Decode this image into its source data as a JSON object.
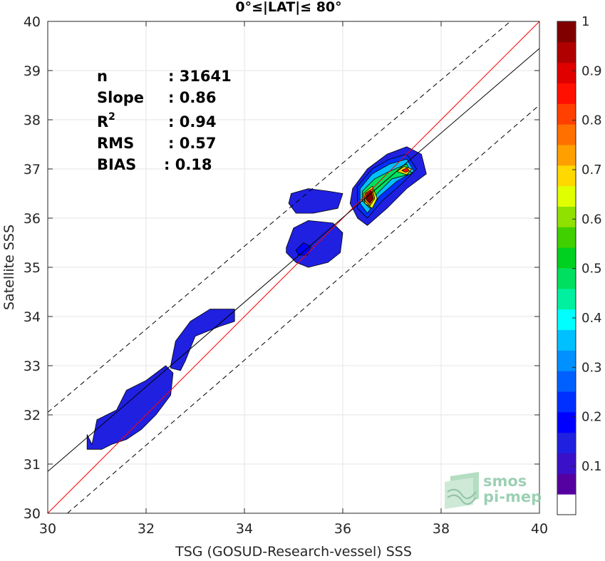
{
  "chart_data": {
    "type": "heatmap",
    "title": "0°≤|LAT|≤ 80°",
    "xlabel": "TSG (GOSUD-Research-vessel) SSS",
    "ylabel": "Satellite SSS",
    "xlim": [
      30,
      40
    ],
    "ylim": [
      30,
      40
    ],
    "xticks": [
      30,
      32,
      34,
      36,
      38,
      40
    ],
    "yticks": [
      30,
      31,
      32,
      33,
      34,
      35,
      36,
      37,
      38,
      39,
      40
    ],
    "grid": true,
    "stats": [
      {
        "label": "n",
        "value": ": 31641"
      },
      {
        "label": "Slope",
        "value": ": 0.86"
      },
      {
        "label": "R",
        "sup": "2",
        "value": ": 0.94"
      },
      {
        "label": "RMS",
        "value": ": 0.57"
      },
      {
        "label": "BIAS",
        "value": ": 0.18"
      }
    ],
    "lines": [
      {
        "name": "1:1 line",
        "color": "#ff0000",
        "style": "solid",
        "points": [
          [
            30,
            30
          ],
          [
            40,
            40
          ]
        ]
      },
      {
        "name": "regression",
        "color": "#000000",
        "style": "solid",
        "points": [
          [
            30,
            30.85
          ],
          [
            40,
            39.45
          ]
        ]
      },
      {
        "name": "upper bound",
        "color": "#000000",
        "style": "dashed",
        "points": [
          [
            30,
            32.05
          ],
          [
            40,
            40.5
          ]
        ]
      },
      {
        "name": "lower bound",
        "color": "#000000",
        "style": "dashed",
        "points": [
          [
            30.4,
            30
          ],
          [
            40,
            38.3
          ]
        ]
      }
    ],
    "density_regions": [
      {
        "name": "cluster-31",
        "level": 0.1,
        "outline": [
          [
            30.9,
            31.4
          ],
          [
            31.0,
            31.9
          ],
          [
            31.4,
            32.1
          ],
          [
            31.6,
            32.5
          ],
          [
            32.0,
            32.7
          ],
          [
            32.4,
            33.0
          ],
          [
            32.55,
            32.85
          ],
          [
            32.5,
            32.4
          ],
          [
            32.2,
            32.0
          ],
          [
            31.9,
            31.7
          ],
          [
            31.6,
            31.5
          ],
          [
            31.3,
            31.4
          ],
          [
            31.1,
            31.3
          ],
          [
            30.8,
            31.3
          ],
          [
            30.8,
            31.6
          ]
        ]
      },
      {
        "name": "cluster-33",
        "level": 0.1,
        "outline": [
          [
            32.5,
            33.0
          ],
          [
            32.6,
            33.5
          ],
          [
            32.9,
            33.9
          ],
          [
            33.3,
            34.15
          ],
          [
            33.8,
            34.15
          ],
          [
            33.8,
            33.9
          ],
          [
            33.5,
            33.8
          ],
          [
            33.0,
            33.6
          ],
          [
            32.8,
            33.1
          ],
          [
            32.7,
            32.9
          ],
          [
            32.5,
            32.95
          ]
        ]
      },
      {
        "name": "cluster-35",
        "level": 0.1,
        "outline": [
          [
            34.85,
            35.4
          ],
          [
            35.0,
            35.8
          ],
          [
            35.3,
            35.95
          ],
          [
            35.8,
            35.9
          ],
          [
            36.0,
            35.7
          ],
          [
            35.95,
            35.3
          ],
          [
            35.7,
            35.1
          ],
          [
            35.3,
            35.0
          ],
          [
            35.05,
            35.1
          ],
          [
            34.85,
            35.3
          ]
        ]
      },
      {
        "name": "cluster-35-core",
        "level": 0.15,
        "outline": [
          [
            35.05,
            35.35
          ],
          [
            35.2,
            35.5
          ],
          [
            35.35,
            35.42
          ],
          [
            35.28,
            35.25
          ],
          [
            35.1,
            35.25
          ]
        ]
      },
      {
        "name": "cluster-36-bridge",
        "level": 0.1,
        "outline": [
          [
            34.95,
            36.5
          ],
          [
            35.3,
            36.6
          ],
          [
            35.7,
            36.55
          ],
          [
            36.0,
            36.5
          ],
          [
            35.9,
            36.2
          ],
          [
            35.4,
            36.1
          ],
          [
            35.05,
            36.1
          ],
          [
            34.9,
            36.3
          ]
        ]
      },
      {
        "name": "cluster-37",
        "level": 0.1,
        "outline": [
          [
            36.2,
            36.6
          ],
          [
            36.5,
            37.0
          ],
          [
            36.9,
            37.3
          ],
          [
            37.3,
            37.45
          ],
          [
            37.6,
            37.3
          ],
          [
            37.7,
            36.9
          ],
          [
            37.3,
            36.6
          ],
          [
            36.9,
            36.2
          ],
          [
            36.5,
            35.85
          ],
          [
            36.3,
            36.0
          ],
          [
            36.15,
            36.3
          ]
        ]
      },
      {
        "name": "cluster-37-l2",
        "level": 0.2,
        "outline": [
          [
            36.3,
            36.65
          ],
          [
            36.6,
            37.0
          ],
          [
            36.95,
            37.2
          ],
          [
            37.3,
            37.3
          ],
          [
            37.5,
            37.0
          ],
          [
            37.2,
            36.7
          ],
          [
            36.8,
            36.35
          ],
          [
            36.5,
            36.0
          ],
          [
            36.3,
            36.2
          ]
        ]
      },
      {
        "name": "cluster-37-l3",
        "level": 0.3,
        "outline": [
          [
            36.35,
            36.6
          ],
          [
            36.6,
            36.9
          ],
          [
            36.95,
            37.1
          ],
          [
            37.3,
            37.2
          ],
          [
            37.45,
            36.95
          ],
          [
            37.1,
            36.75
          ],
          [
            36.75,
            36.45
          ],
          [
            36.5,
            36.1
          ],
          [
            36.35,
            36.3
          ]
        ]
      },
      {
        "name": "cluster-37-l4",
        "level": 0.45,
        "outline": [
          [
            36.4,
            36.55
          ],
          [
            36.65,
            36.8
          ],
          [
            36.95,
            36.95
          ],
          [
            37.3,
            37.1
          ],
          [
            37.4,
            36.9
          ],
          [
            37.0,
            36.8
          ],
          [
            36.7,
            36.5
          ],
          [
            36.55,
            36.2
          ],
          [
            36.4,
            36.35
          ]
        ]
      },
      {
        "name": "cluster-37-l5",
        "level": 0.6,
        "outline": [
          [
            36.42,
            36.5
          ],
          [
            36.6,
            36.65
          ],
          [
            36.7,
            36.4
          ],
          [
            36.6,
            36.2
          ],
          [
            36.45,
            36.3
          ]
        ]
      },
      {
        "name": "cluster-37-l6",
        "level": 0.75,
        "outline": [
          [
            36.45,
            36.5
          ],
          [
            36.6,
            36.6
          ],
          [
            36.65,
            36.4
          ],
          [
            36.55,
            36.25
          ],
          [
            36.45,
            36.35
          ]
        ]
      },
      {
        "name": "cluster-37-peak",
        "level": 0.95,
        "outline": [
          [
            36.48,
            36.5
          ],
          [
            36.58,
            36.55
          ],
          [
            36.62,
            36.4
          ],
          [
            36.55,
            36.3
          ],
          [
            36.48,
            36.38
          ]
        ]
      },
      {
        "name": "cluster-37-east-l5",
        "level": 0.65,
        "outline": [
          [
            37.1,
            36.95
          ],
          [
            37.25,
            37.05
          ],
          [
            37.4,
            37.0
          ],
          [
            37.3,
            36.88
          ]
        ]
      },
      {
        "name": "cluster-37-east-l6",
        "level": 0.8,
        "outline": [
          [
            37.2,
            36.97
          ],
          [
            37.3,
            37.02
          ],
          [
            37.35,
            36.97
          ],
          [
            37.28,
            36.93
          ]
        ]
      }
    ],
    "colorbar": {
      "ticks": [
        "0.1",
        "0.2",
        "0.3",
        "0.4",
        "0.5",
        "0.6",
        "0.7",
        "0.8",
        "0.9",
        "1"
      ],
      "colors": [
        "#ffffff",
        "#5500a0",
        "#3a10c8",
        "#2020e0",
        "#0000ff",
        "#0030ff",
        "#0060ff",
        "#0090ff",
        "#00c0ff",
        "#00ffff",
        "#00f0a0",
        "#00e060",
        "#00d020",
        "#40d000",
        "#90e000",
        "#e0ff00",
        "#ffd800",
        "#ffa000",
        "#ff7000",
        "#ff4000",
        "#ff1000",
        "#e00000",
        "#b00000",
        "#800000"
      ]
    }
  },
  "logo": {
    "line1": "smos",
    "line2": "pi-mep"
  }
}
